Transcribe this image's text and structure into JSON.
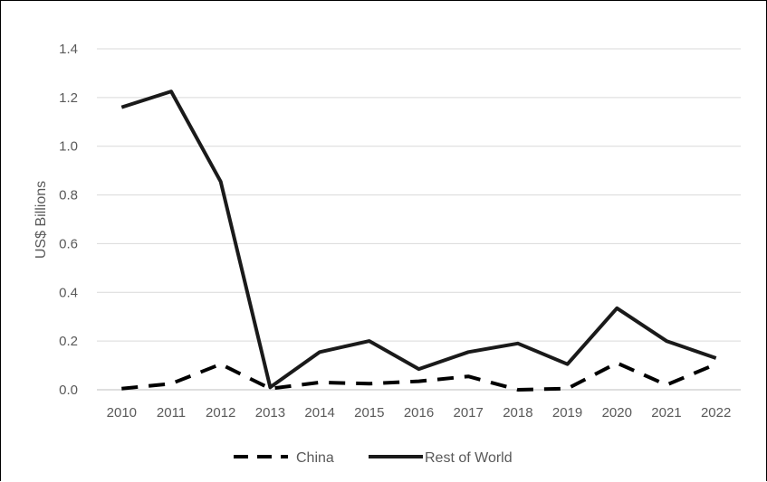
{
  "chart_data": {
    "type": "line",
    "title": "",
    "xlabel": "",
    "ylabel": "US$ Billions",
    "ylim": [
      0,
      1.4
    ],
    "yticks": [
      "0.0",
      "0.2",
      "0.4",
      "0.6",
      "0.8",
      "1.0",
      "1.2",
      "1.4"
    ],
    "categories": [
      "2010",
      "2011",
      "2012",
      "2013",
      "2014",
      "2015",
      "2016",
      "2017",
      "2018",
      "2019",
      "2020",
      "2021",
      "2022"
    ],
    "grid": "horizontal",
    "legend_position": "bottom",
    "series": [
      {
        "name": "China",
        "style": "dashed",
        "color": "#000000",
        "values": [
          0.005,
          0.025,
          0.105,
          0.005,
          0.03,
          0.025,
          0.035,
          0.055,
          0.0,
          0.005,
          0.11,
          0.02,
          0.105
        ]
      },
      {
        "name": "Rest of World",
        "style": "solid",
        "color": "#1a1a1a",
        "values": [
          1.16,
          1.225,
          0.855,
          0.01,
          0.155,
          0.2,
          0.085,
          0.155,
          0.19,
          0.105,
          0.335,
          0.2,
          0.13
        ]
      }
    ]
  }
}
